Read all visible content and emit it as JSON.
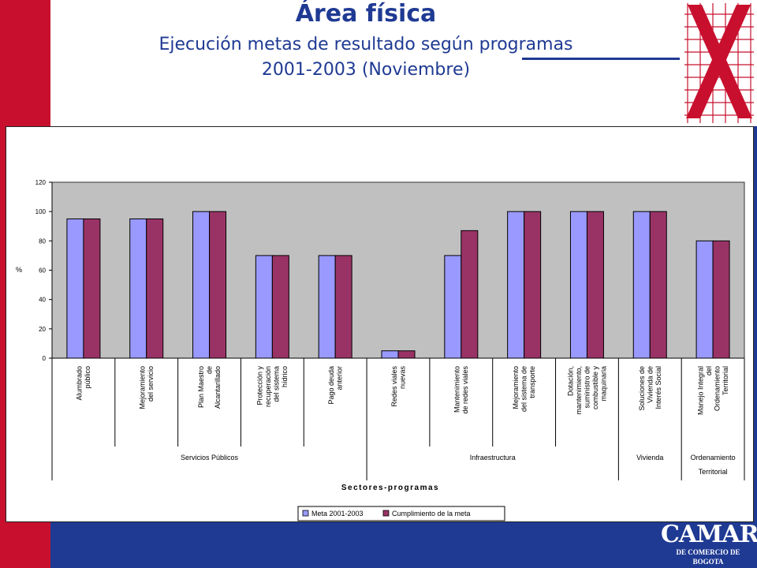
{
  "slide": {
    "title": "Área física",
    "subtitle_line1": "Ejecución metas de resultado según programas",
    "subtitle_line2": "2001-2003 (Noviembre)"
  },
  "brand": {
    "name": "CAMARA",
    "subline": "DE COMERCIO DE BOGOTA",
    "logo_icon": "x-crosshatch-logo-icon",
    "colors": {
      "blue": "#1f3a93",
      "red": "#c8102e"
    }
  },
  "chart_data": {
    "type": "bar",
    "title": "",
    "xlabel": "Sectores-programas",
    "ylabel": "%",
    "ylim": [
      0,
      120
    ],
    "yticks": [
      0,
      20,
      40,
      60,
      80,
      100,
      120
    ],
    "grid": false,
    "plot_background": "#c0c0c0",
    "legend_position": "bottom",
    "categories": [
      [
        "Alumbrado",
        "público"
      ],
      [
        "Mejoramiento",
        "del servicio"
      ],
      [
        "Plan Maestro",
        "de",
        "Alcantarillado"
      ],
      [
        "Protección y",
        "recuperación",
        "del sistema",
        "hídrico"
      ],
      [
        "Pago deuda",
        "anterior"
      ],
      [
        "Redes viales",
        "nuevas"
      ],
      [
        "Mantenimiento",
        "de redes viales"
      ],
      [
        "Mejoramiento",
        "del sistema de",
        "transporte"
      ],
      [
        "Dotación,",
        "mantenimiento,",
        "suministro de",
        "combustible y",
        "maquinaria"
      ],
      [
        "Soluciones de",
        "Vivienda de",
        "Interés Social"
      ],
      [
        "Manejo Integral",
        "del",
        "Ordenamiento",
        "Territorial"
      ]
    ],
    "groups": [
      {
        "label": "Servicios Públicos",
        "start": 0,
        "end": 4
      },
      {
        "label": "Infraestructura",
        "start": 5,
        "end": 8
      },
      {
        "label": "Vivienda",
        "start": 9,
        "end": 9
      },
      {
        "label": "Ordenamiento Territorial",
        "label_lines": [
          "Ordenamiento",
          "Territorial"
        ],
        "start": 10,
        "end": 10
      }
    ],
    "series": [
      {
        "name": "Meta 2001-2003",
        "color": "#9999ff",
        "values": [
          95,
          95,
          100,
          70,
          70,
          5,
          70,
          100,
          100,
          100,
          80
        ]
      },
      {
        "name": "Cumplimiento de la meta",
        "color": "#993366",
        "values": [
          95,
          95,
          100,
          70,
          70,
          5,
          87,
          100,
          100,
          100,
          80
        ]
      }
    ]
  }
}
